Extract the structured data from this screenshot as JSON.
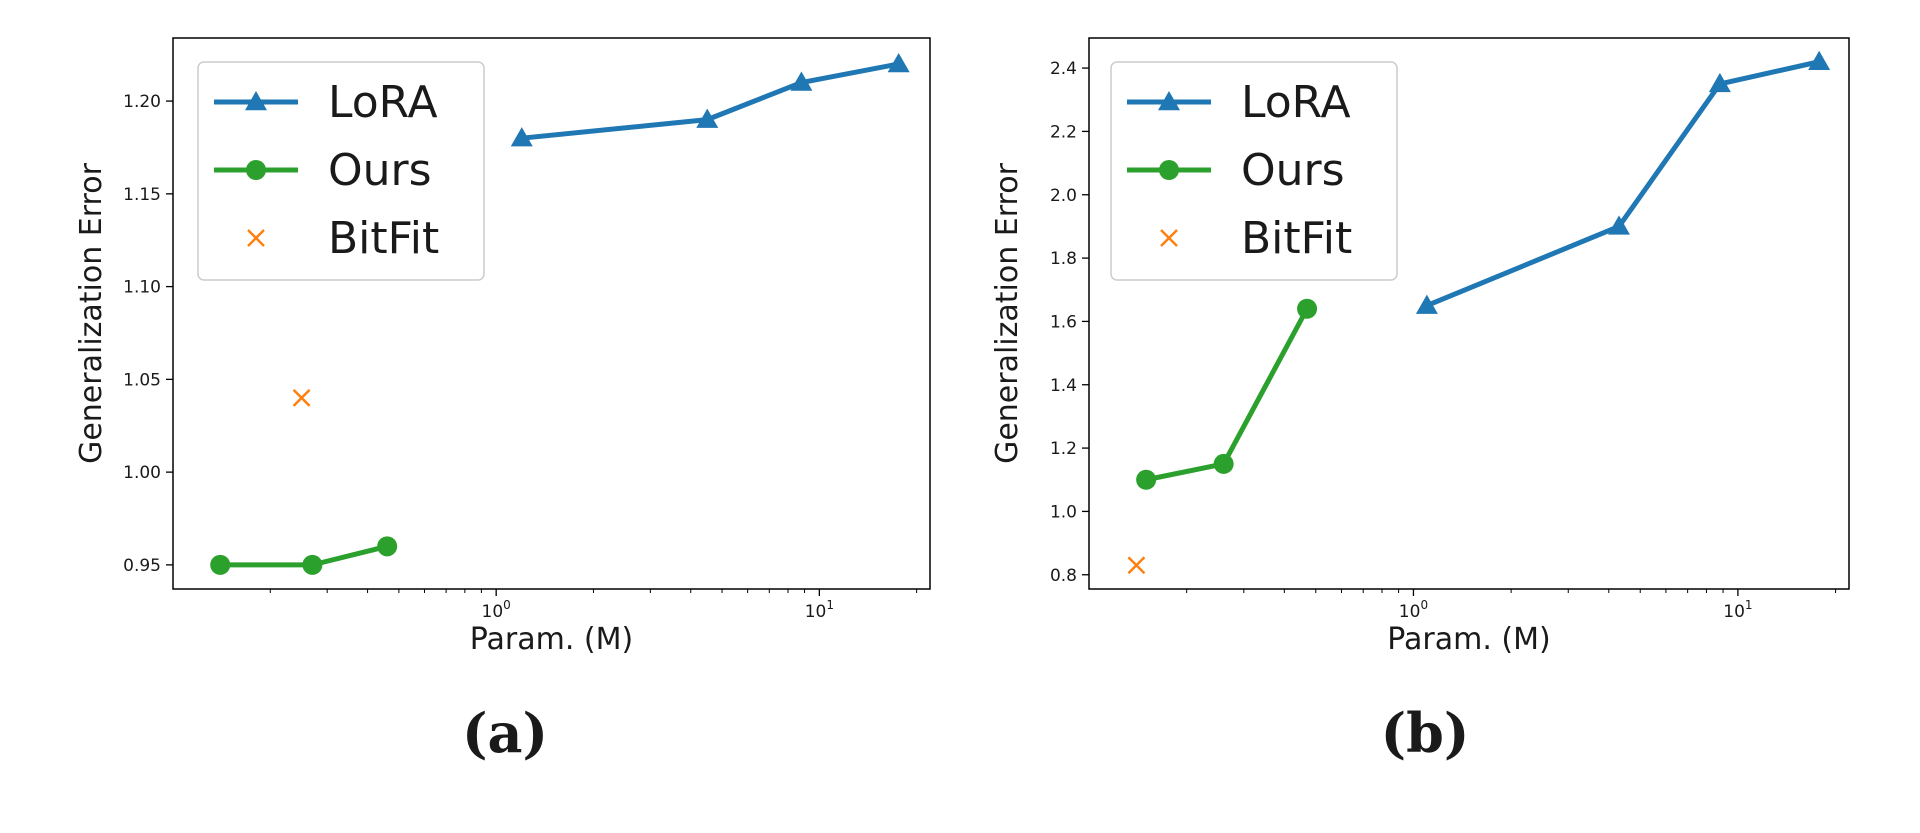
{
  "chart_data": [
    {
      "type": "line",
      "caption": "(a)",
      "xlabel": "Param. (M)",
      "ylabel": "Generalization Error",
      "xscale": "log",
      "xlim": [
        0.1,
        22
      ],
      "ylim": [
        0.937,
        1.234
      ],
      "yticks": [
        0.95,
        1.0,
        1.05,
        1.1,
        1.15,
        1.2
      ],
      "ytick_labels": [
        "0.95",
        "1.00",
        "1.05",
        "1.10",
        "1.15",
        "1.20"
      ],
      "xticks": [
        1,
        10
      ],
      "xtick_labels": [
        {
          "base": "10",
          "exp": "0"
        },
        {
          "base": "10",
          "exp": "1"
        }
      ],
      "grid": false,
      "legend_position": "top-left",
      "series": [
        {
          "name": "LoRA",
          "color": "#1f77b4",
          "marker": "triangle",
          "style": "line",
          "x": [
            1.2,
            4.5,
            8.8,
            17.6
          ],
          "y": [
            1.18,
            1.19,
            1.21,
            1.22
          ]
        },
        {
          "name": "Ours",
          "color": "#2ca02c",
          "marker": "circle",
          "style": "line",
          "x": [
            0.14,
            0.27,
            0.46
          ],
          "y": [
            0.95,
            0.95,
            0.96
          ]
        },
        {
          "name": "BitFit",
          "color": "#ff7f0e",
          "marker": "x",
          "style": "scatter",
          "x": [
            0.25
          ],
          "y": [
            1.04
          ]
        }
      ]
    },
    {
      "type": "line",
      "caption": "(b)",
      "xlabel": "Param. (M)",
      "ylabel": "Generalization Error",
      "xscale": "log",
      "xlim": [
        0.1,
        22
      ],
      "ylim": [
        0.755,
        2.495
      ],
      "yticks": [
        0.8,
        1.0,
        1.2,
        1.4,
        1.6,
        1.8,
        2.0,
        2.2,
        2.4
      ],
      "ytick_labels": [
        "0.8",
        "1.0",
        "1.2",
        "1.4",
        "1.6",
        "1.8",
        "2.0",
        "2.2",
        "2.4"
      ],
      "xticks": [
        1,
        10
      ],
      "xtick_labels": [
        {
          "base": "10",
          "exp": "0"
        },
        {
          "base": "10",
          "exp": "1"
        }
      ],
      "grid": false,
      "legend_position": "top-left",
      "series": [
        {
          "name": "LoRA",
          "color": "#1f77b4",
          "marker": "triangle",
          "style": "line",
          "x": [
            1.1,
            4.3,
            8.8,
            17.8
          ],
          "y": [
            1.65,
            1.9,
            2.35,
            2.42
          ]
        },
        {
          "name": "Ours",
          "color": "#2ca02c",
          "marker": "circle",
          "style": "line",
          "x": [
            0.15,
            0.26,
            0.47
          ],
          "y": [
            1.1,
            1.15,
            1.64
          ]
        },
        {
          "name": "BitFit",
          "color": "#ff7f0e",
          "marker": "x",
          "style": "scatter",
          "x": [
            0.14
          ],
          "y": [
            0.83
          ]
        }
      ]
    }
  ]
}
